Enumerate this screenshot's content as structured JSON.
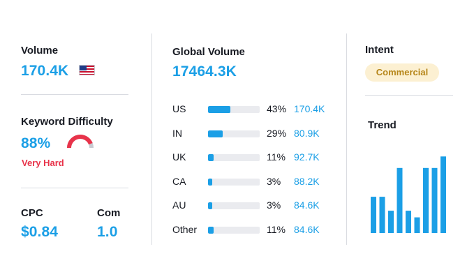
{
  "volume": {
    "label": "Volume",
    "value": "170.4K",
    "flag_icon": "us-flag-icon"
  },
  "keyword_difficulty": {
    "label": "Keyword Difficulty",
    "value": "88%",
    "percent": 88,
    "level": "Very Hard",
    "gauge_color": "#e8334a",
    "gauge_track_color": "#c7cad1"
  },
  "cpc": {
    "label": "CPC",
    "value": "$0.84"
  },
  "com": {
    "label": "Com",
    "value": "1.0"
  },
  "global_volume": {
    "label": "Global Volume",
    "value": "17464.3K",
    "countries": [
      {
        "code": "US",
        "percent": "43%",
        "share": 43,
        "volume": "170.4K"
      },
      {
        "code": "IN",
        "percent": "29%",
        "share": 29,
        "volume": "80.9K"
      },
      {
        "code": "UK",
        "percent": "11%",
        "share": 11,
        "volume": "92.7K"
      },
      {
        "code": "CA",
        "percent": "3%",
        "share": 3,
        "volume": "88.2K"
      },
      {
        "code": "AU",
        "percent": "3%",
        "share": 3,
        "volume": "84.6K"
      },
      {
        "code": "Other",
        "percent": "11%",
        "share": 11,
        "volume": "84.6K"
      }
    ]
  },
  "intent": {
    "label": "Intent",
    "badge": "Commercial",
    "badge_bg": "#fcf0d2",
    "badge_color": "#b6861a"
  },
  "trend": {
    "label": "Trend",
    "chart_data": {
      "type": "bar",
      "values": [
        0.44,
        0.44,
        0.27,
        0.79,
        0.27,
        0.19,
        0.79,
        0.79,
        0.93
      ],
      "ylim": [
        0,
        1
      ],
      "color": "#1b9fe6",
      "grid": false
    }
  },
  "colors": {
    "accent": "#1b9fe6",
    "danger": "#e8334a",
    "divider": "#d9dbe1",
    "bar_track": "#eaebef"
  }
}
